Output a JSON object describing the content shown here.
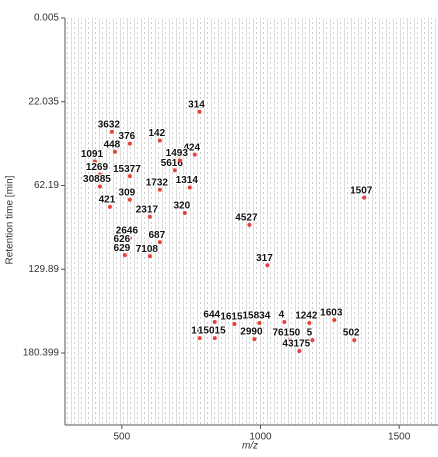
{
  "chart_data": {
    "type": "scatter",
    "xlabel": "m/z",
    "ylabel": "Retention time [min]",
    "xlim": [
      295,
      1640
    ],
    "xticks": [
      500,
      1000,
      1500
    ],
    "ylim": [
      0.005,
      224
    ],
    "yticks": [
      0.005,
      22.035,
      62.19,
      129.89,
      180.399
    ],
    "y_inverted": true,
    "series": [
      {
        "color": "#e8413a",
        "labels": [
          "314",
          "424",
          "1507",
          "4527",
          "317",
          "2317",
          "1314",
          "320",
          "687",
          "2646",
          "626",
          "629",
          "7108",
          "1091",
          "3632",
          "1269",
          "30885",
          "421",
          "309",
          "376",
          "142",
          "448",
          "5616",
          "1493",
          "15377",
          "1732",
          "644",
          "1615",
          "15834",
          "4",
          "1242",
          "1603",
          "16",
          "15015",
          "2990",
          "76150",
          "5",
          "43175",
          "502"
        ],
        "x": [
          780,
          763,
          1374,
          960,
          1025,
          601,
          745,
          727,
          637,
          529,
          511,
          511,
          601,
          403,
          464,
          421,
          421,
          457,
          529,
          529,
          637,
          475,
          691,
          709,
          529,
          637,
          835,
          906,
          996,
          1086,
          1176,
          1266,
          781,
          835,
          978,
          1104,
          1187,
          1140,
          1338
        ],
        "values": [
          26.8,
          47.4,
          72.0,
          94.0,
          126.7,
          87.5,
          63.8,
          84.4,
          108.0,
          104.7,
          111.2,
          118.5,
          119.3,
          50.7,
          36.4,
          56.9,
          63.0,
          79.5,
          73.7,
          42.1,
          40.6,
          46.0,
          54.9,
          50.2,
          57.7,
          65.6,
          161.7,
          162.9,
          162.3,
          161.7,
          162.3,
          160.5,
          171.4,
          171.4,
          172.0,
          172.6,
          172.6,
          179.2,
          172.6
        ]
      }
    ]
  }
}
